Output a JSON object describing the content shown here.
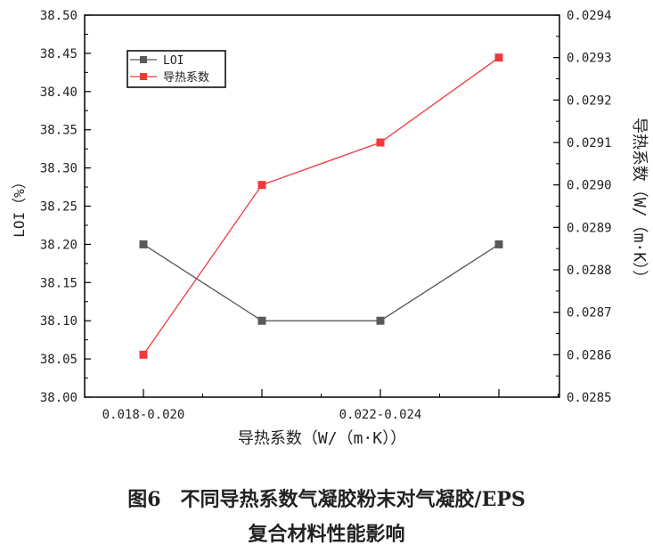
{
  "chart_data": {
    "type": "line",
    "categories": [
      "0.018-0.020",
      "",
      "0.022-0.024",
      ""
    ],
    "xlabel": "导热系数（W/（m·K））",
    "ylabel": "LOI（%）",
    "y2label": "导热系数（W/（m·K））",
    "ylim": [
      38.0,
      38.5
    ],
    "yticks": [
      "38.00",
      "38.05",
      "38.10",
      "38.15",
      "38.20",
      "38.25",
      "38.30",
      "38.35",
      "38.40",
      "38.45",
      "38.50"
    ],
    "y2lim": [
      0.0285,
      0.0294
    ],
    "y2ticks": [
      "0.0285",
      "0.0286",
      "0.0287",
      "0.0288",
      "0.0289",
      "0.0290",
      "0.0291",
      "0.0292",
      "0.0293",
      "0.0294"
    ],
    "grid": false,
    "legend_position": "top-left",
    "series": [
      {
        "name": "LOI",
        "axis": "left",
        "color": "#595959",
        "values": [
          38.2,
          38.1,
          38.1,
          38.2
        ]
      },
      {
        "name": "导热系数",
        "axis": "right",
        "color": "#f0393b",
        "values": [
          0.0286,
          0.029,
          0.0291,
          0.0293
        ]
      }
    ]
  },
  "caption": {
    "line1": "图6　不同导热系数气凝胶粉末对气凝胶/EPS",
    "line2": "复合材料性能影响"
  }
}
